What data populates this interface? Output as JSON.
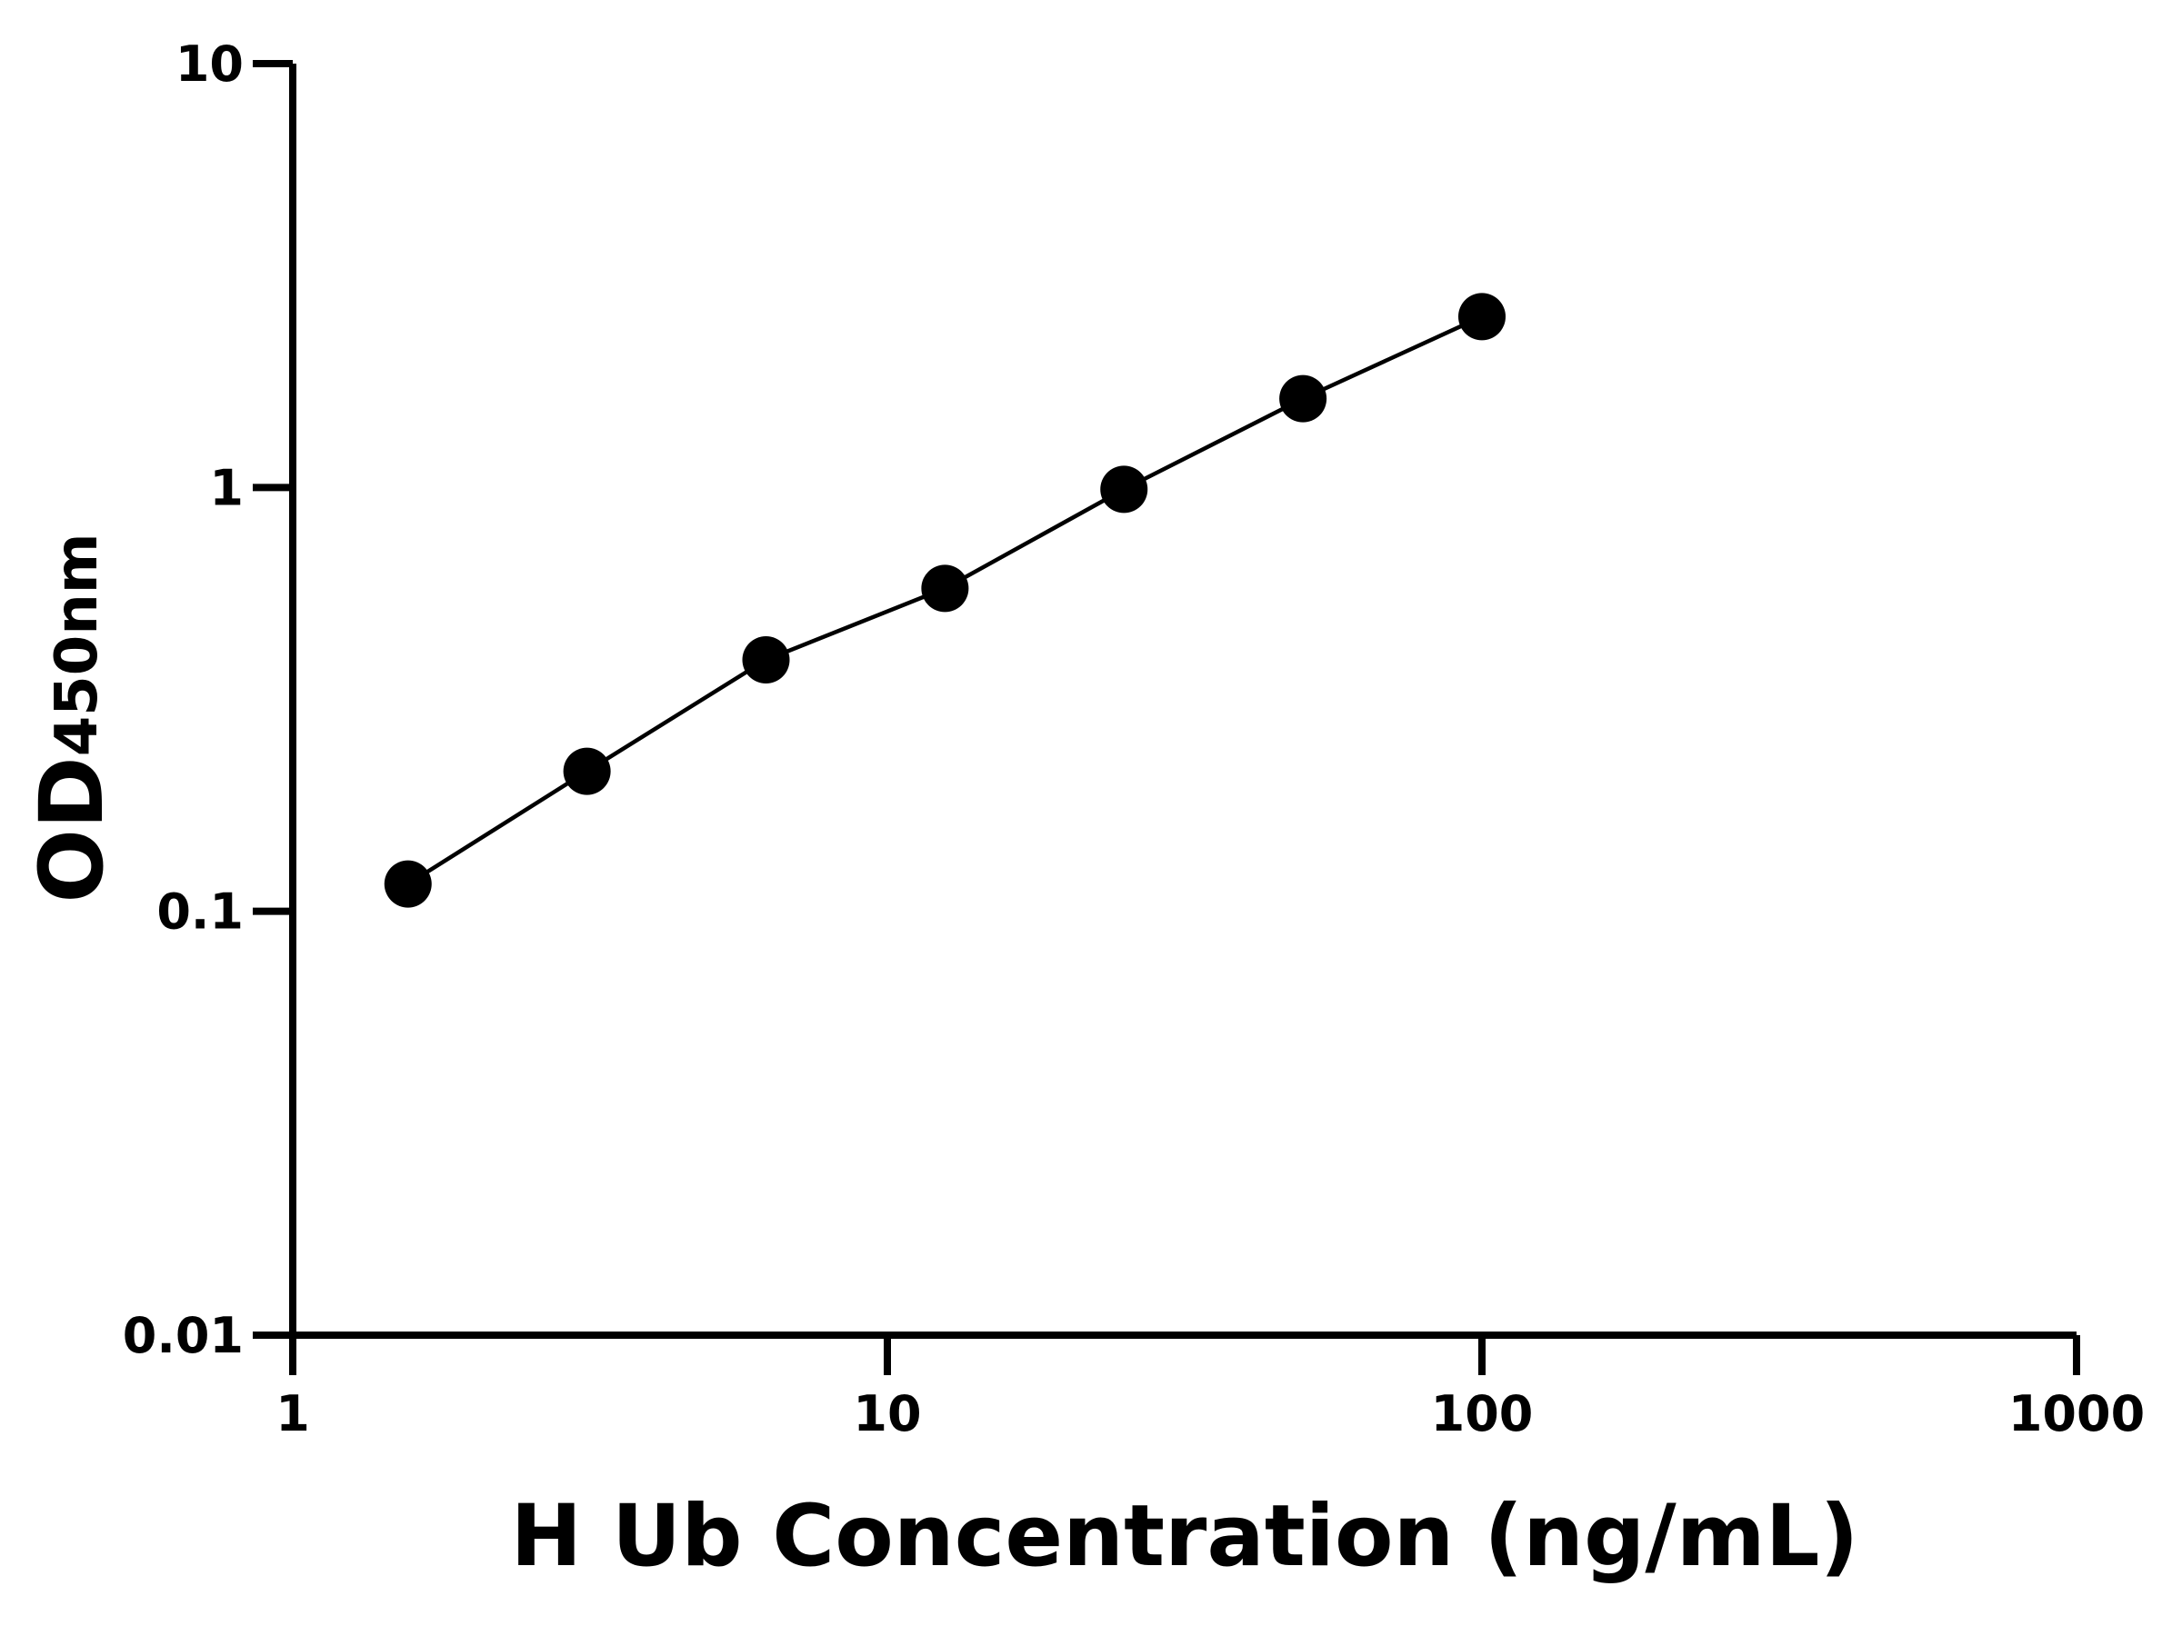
{
  "chart_data": {
    "type": "line",
    "xlabel": "H Ub Concentration (ng/mL)",
    "ylabel": "OD",
    "ylabel_sub": "450nm",
    "x": [
      1.5625,
      3.125,
      6.25,
      12.5,
      25,
      50,
      100
    ],
    "values": [
      0.116,
      0.214,
      0.392,
      0.578,
      0.99,
      1.62,
      2.53
    ],
    "color": "#000000",
    "xscale": "log",
    "yscale": "log",
    "xlim": [
      1,
      1000
    ],
    "ylim": [
      0.01,
      10
    ],
    "xticks": [
      1,
      10,
      100,
      1000
    ],
    "yticks": [
      0.01,
      0.1,
      1,
      10
    ],
    "markers": true,
    "grid": false
  }
}
